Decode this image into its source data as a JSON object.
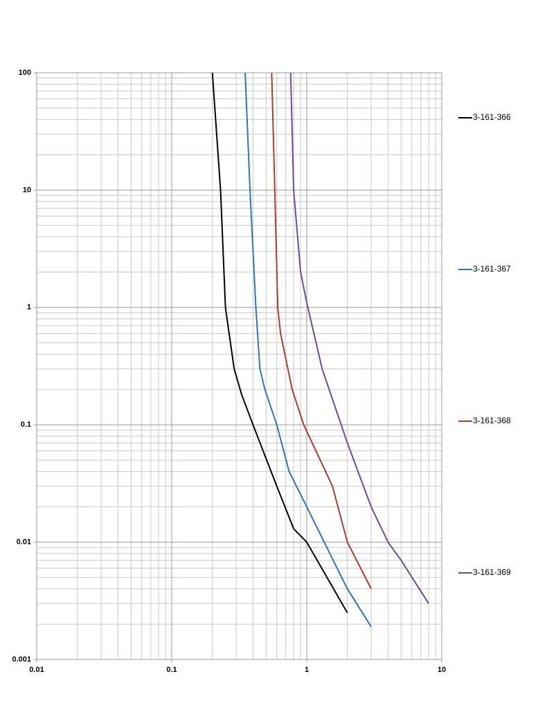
{
  "chart_data": {
    "type": "line",
    "xlog": true,
    "ylog": true,
    "grid": true,
    "legend": "right",
    "xlim": [
      0.01,
      10
    ],
    "xticks": [
      0.01,
      0.1,
      1,
      10
    ],
    "ylim": [
      0.001,
      100
    ],
    "yticks": [
      0.001,
      0.01,
      0.1,
      1,
      10,
      100
    ],
    "series": [
      {
        "name": "3-161-366",
        "color": "#000000",
        "x": [
          0.2,
          0.23,
          0.25,
          0.29,
          0.33,
          0.4,
          0.6,
          0.8,
          1.0,
          2.0
        ],
        "values": [
          100,
          10,
          1,
          0.3,
          0.18,
          0.1,
          0.03,
          0.013,
          0.01,
          0.0025
        ]
      },
      {
        "name": "3-161-367",
        "color": "#2e75b6",
        "x": [
          0.35,
          0.38,
          0.42,
          0.45,
          0.49,
          0.6,
          0.74,
          1.0,
          2.0,
          3.0
        ],
        "values": [
          100,
          10,
          1,
          0.3,
          0.2,
          0.1,
          0.04,
          0.02,
          0.004,
          0.0019
        ]
      },
      {
        "name": "3-161-368",
        "color": "#b03a32",
        "x": [
          0.55,
          0.58,
          0.61,
          0.64,
          0.78,
          0.95,
          1.55,
          2.0,
          3.0
        ],
        "values": [
          100,
          10,
          1,
          0.6,
          0.2,
          0.1,
          0.03,
          0.01,
          0.004
        ]
      },
      {
        "name": "3-161-369",
        "color": "#6a4c9c",
        "x": [
          0.76,
          0.8,
          0.9,
          1.0,
          1.3,
          2.0,
          3.0,
          4.0,
          5.0,
          8.0
        ],
        "values": [
          100,
          10,
          2,
          1.1,
          0.3,
          0.07,
          0.02,
          0.01,
          0.007,
          0.003
        ]
      }
    ]
  }
}
